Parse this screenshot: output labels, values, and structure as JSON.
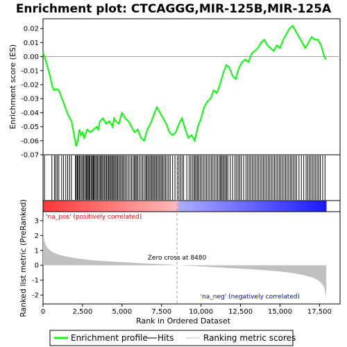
{
  "chart_data": {
    "type": "line",
    "title": "Enrichment plot: CTCAGGG,MIR-125B,MIR-125A",
    "xlabel": "Rank in Ordered Dataset",
    "xlim": [
      0,
      18800
    ],
    "x_ticks": [
      "0",
      "2,500",
      "5,000",
      "7,500",
      "10,000",
      "12,500",
      "15,000",
      "17,500"
    ],
    "x_tick_values": [
      0,
      2500,
      5000,
      7500,
      10000,
      12500,
      15000,
      17500
    ],
    "es_panel": {
      "ylabel": "Enrichment score (ES)",
      "ylim": [
        -0.07,
        0.027
      ],
      "y_ticks": [
        "0.02",
        "0.01",
        "0.00",
        "-0.01",
        "-0.02",
        "-0.03",
        "-0.04",
        "-0.05",
        "-0.06",
        "-0.07"
      ],
      "y_tick_values": [
        0.02,
        0.01,
        0.0,
        -0.01,
        -0.02,
        -0.03,
        -0.04,
        -0.05,
        -0.06,
        -0.07
      ],
      "series": [
        {
          "name": "Enrichment profile",
          "color": "#00ff00",
          "x": [
            0,
            200,
            400,
            600,
            700,
            800,
            1000,
            1200,
            1400,
            1600,
            1800,
            2000,
            2100,
            2200,
            2300,
            2400,
            2500,
            2600,
            2800,
            3000,
            3200,
            3400,
            3500,
            3600,
            3800,
            4000,
            4200,
            4400,
            4500,
            4600,
            4800,
            5000,
            5200,
            5400,
            5600,
            5800,
            6000,
            6200,
            6400,
            6600,
            6800,
            7000,
            7200,
            7400,
            7600,
            7800,
            8000,
            8200,
            8400,
            8600,
            8800,
            9000,
            9200,
            9400,
            9600,
            9800,
            10000,
            10200,
            10400,
            10600,
            10800,
            11000,
            11200,
            11400,
            11600,
            11800,
            12000,
            12200,
            12400,
            12600,
            12800,
            13000,
            13200,
            13400,
            13600,
            13800,
            14000,
            14200,
            14400,
            14600,
            14800,
            15000,
            15200,
            15400,
            15600,
            15800,
            16000,
            16200,
            16400,
            16600,
            16800,
            17000,
            17200,
            17400,
            17600,
            17800,
            17900
          ],
          "y": [
            0.003,
            -0.004,
            -0.012,
            -0.022,
            -0.024,
            -0.023,
            -0.024,
            -0.03,
            -0.036,
            -0.042,
            -0.046,
            -0.058,
            -0.064,
            -0.06,
            -0.052,
            -0.056,
            -0.054,
            -0.058,
            -0.052,
            -0.054,
            -0.052,
            -0.05,
            -0.052,
            -0.046,
            -0.044,
            -0.048,
            -0.046,
            -0.05,
            -0.044,
            -0.046,
            -0.048,
            -0.04,
            -0.044,
            -0.046,
            -0.05,
            -0.054,
            -0.052,
            -0.058,
            -0.06,
            -0.052,
            -0.048,
            -0.042,
            -0.036,
            -0.04,
            -0.044,
            -0.048,
            -0.054,
            -0.056,
            -0.054,
            -0.048,
            -0.044,
            -0.052,
            -0.058,
            -0.056,
            -0.06,
            -0.05,
            -0.044,
            -0.036,
            -0.032,
            -0.03,
            -0.024,
            -0.026,
            -0.02,
            -0.012,
            -0.006,
            -0.008,
            -0.014,
            -0.016,
            -0.008,
            -0.004,
            -0.002,
            -0.004,
            0.002,
            0.004,
            0.006,
            0.01,
            0.012,
            0.008,
            0.006,
            0.004,
            0.008,
            0.006,
            0.012,
            0.016,
            0.02,
            0.022,
            0.018,
            0.014,
            0.01,
            0.006,
            0.01,
            0.014,
            0.012,
            0.012,
            0.008,
            0.0,
            -0.002
          ]
        }
      ]
    },
    "hits_panel": {
      "legend_label": "Hits",
      "hit_ranks": [
        90,
        560,
        720,
        810,
        900,
        1000,
        1180,
        1300,
        1440,
        1560,
        1680,
        1800,
        2050,
        2100,
        2170,
        2220,
        2300,
        2360,
        2450,
        2530,
        2590,
        2680,
        2740,
        2800,
        2860,
        2920,
        2980,
        3060,
        3120,
        3180,
        3230,
        3300,
        3380,
        3440,
        3520,
        3600,
        3660,
        3730,
        3800,
        3880,
        3950,
        4020,
        4100,
        4160,
        4230,
        4300,
        4370,
        4440,
        4500,
        4580,
        4650,
        4720,
        4800,
        4880,
        4960,
        5040,
        5120,
        5200,
        5300,
        5400,
        5500,
        5600,
        5700,
        5780,
        5850,
        5920,
        6000,
        6100,
        6200,
        6300,
        6400,
        6500,
        6560,
        6640,
        6720,
        6800,
        6880,
        6950,
        7030,
        7100,
        7180,
        7260,
        7340,
        7420,
        7500,
        7580,
        7660,
        7750,
        7850,
        7950,
        8050,
        8200,
        8350,
        8500,
        8600,
        8700,
        8800,
        8900,
        9100,
        9250,
        9350,
        9450,
        9550,
        9620,
        9700,
        9780,
        9860,
        9950,
        10050,
        10150,
        10250,
        10350,
        10450,
        10550,
        10650,
        10750,
        10850,
        10950,
        11050,
        11150,
        11230,
        11300,
        11380,
        11460,
        11540,
        11620,
        11700,
        11850,
        12000,
        12150,
        12250,
        12350,
        12450,
        12550,
        12700,
        12850,
        12950,
        13050,
        13150,
        13250,
        13350,
        13450,
        13550,
        13650,
        13750,
        13850,
        13950,
        14050,
        14150,
        14250,
        14350,
        14450,
        14550,
        14650,
        14750,
        14850,
        14950,
        15050,
        15150,
        15250,
        15350,
        15450,
        15550,
        15650,
        15750,
        15850,
        15950,
        16050,
        16200,
        16350,
        16500,
        16650,
        16750,
        16850,
        16950,
        17050,
        17150,
        17250,
        17350,
        17450,
        17550,
        17700,
        17850
      ]
    },
    "ranking_panel": {
      "ylabel": "Ranked list metric (PreRanked)",
      "legend_label": "Ranking metric scores",
      "ylim": [
        -2.6,
        3.6
      ],
      "y_ticks": [
        "3",
        "2",
        "1",
        "0",
        "-1",
        "-2"
      ],
      "y_tick_values": [
        3,
        2,
        1,
        0,
        -1,
        -2
      ],
      "x": [
        0,
        50,
        100,
        200,
        300,
        400,
        500,
        700,
        900,
        1200,
        1600,
        2000,
        2500,
        3000,
        3500,
        4000,
        5000,
        6000,
        7000,
        8000,
        8480,
        9000,
        10000,
        11000,
        12000,
        13000,
        14000,
        15000,
        15500,
        16000,
        16500,
        17000,
        17300,
        17500,
        17700,
        17800,
        17850,
        17900,
        17930
      ],
      "values": [
        3.3,
        1.9,
        1.55,
        1.3,
        1.15,
        1.05,
        0.95,
        0.82,
        0.74,
        0.65,
        0.56,
        0.49,
        0.41,
        0.35,
        0.31,
        0.27,
        0.21,
        0.15,
        0.1,
        0.05,
        0.0,
        -0.03,
        -0.08,
        -0.14,
        -0.2,
        -0.26,
        -0.33,
        -0.42,
        -0.48,
        -0.56,
        -0.66,
        -0.8,
        -0.94,
        -1.08,
        -1.3,
        -1.5,
        -1.75,
        -2.0,
        -2.4
      ],
      "zero_cross_label": "Zero cross at 8480",
      "zero_cross_rank": 8480,
      "pos_label": "'na_pos' (positively correlated)",
      "neg_label": "'na_neg' (negatively correlated)",
      "pos_color": "#ff0000",
      "neg_color": "#0000ff",
      "fill_color": "#c0c0c0"
    },
    "legend": {
      "placement": "bottom",
      "items": [
        "Enrichment profile",
        "Hits",
        "Ranking metric scores"
      ]
    }
  }
}
